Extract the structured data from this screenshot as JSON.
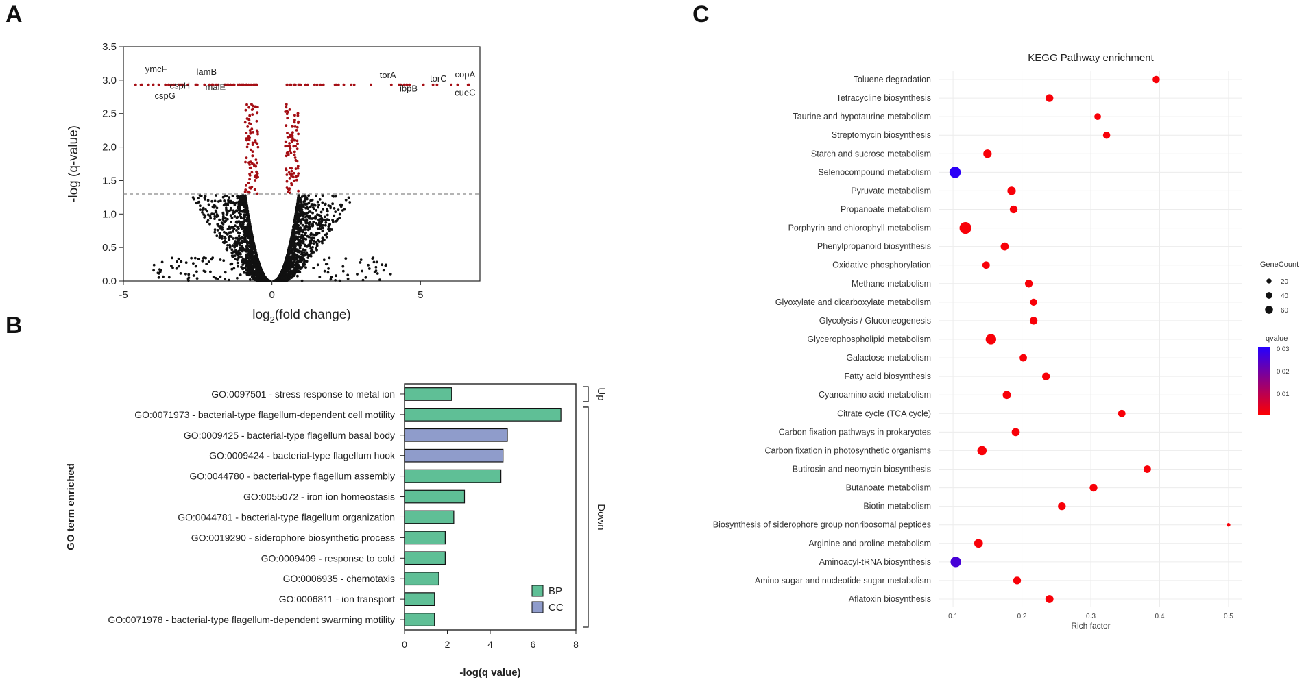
{
  "panels": {
    "a": "A",
    "b": "B",
    "c": "C"
  },
  "chart_data": [
    {
      "type": "scatter",
      "panel": "A",
      "title": "",
      "xlabel_main": "log",
      "xlabel_sub": "2",
      "xlabel_rest": "(fold change)",
      "ylabel": "-log (q-value)",
      "xlim": [
        -5,
        7
      ],
      "ylim": [
        0,
        3.5
      ],
      "xticks": [
        -5,
        0,
        5
      ],
      "yticks": [
        "0.0",
        "0.5",
        "1.0",
        "1.5",
        "2.0",
        "2.5",
        "3.0",
        "3.5"
      ],
      "threshold": 1.3,
      "colors": {
        "significant": "#a50f15",
        "nonsignificant": "#111111",
        "threshold": "#888888"
      },
      "labels": [
        {
          "text": "ymcF",
          "x": -3.9,
          "y": 3.12
        },
        {
          "text": "cspH",
          "x": -3.1,
          "y": 2.87
        },
        {
          "text": "cspG",
          "x": -3.6,
          "y": 2.72
        },
        {
          "text": "lamB",
          "x": -2.2,
          "y": 3.08
        },
        {
          "text": "malE",
          "x": -1.9,
          "y": 2.85
        },
        {
          "text": "torA",
          "x": 3.9,
          "y": 3.03
        },
        {
          "text": "ibpB",
          "x": 4.6,
          "y": 2.83
        },
        {
          "text": "torC",
          "x": 5.6,
          "y": 2.98
        },
        {
          "text": "copA",
          "x": 6.5,
          "y": 3.04
        },
        {
          "text": "cueC",
          "x": 6.5,
          "y": 2.77
        }
      ]
    },
    {
      "type": "bar",
      "orientation": "horizontal",
      "panel": "B",
      "ylabel": "GO term enriched",
      "xlabel": "-log(q value)",
      "xlim": [
        0,
        8
      ],
      "xticks": [
        "0",
        "2",
        "4",
        "6",
        "8"
      ],
      "categories": [
        "GO:0097501 - stress response to metal ion",
        "GO:0071973 - bacterial-type flagellum-dependent cell motility",
        "GO:0009425 - bacterial-type flagellum basal body",
        "GO:0009424 - bacterial-type flagellum hook",
        "GO:0044780 - bacterial-type flagellum assembly",
        "GO:0055072 - iron ion homeostasis",
        "GO:0044781 - bacterial-type flagellum organization",
        "GO:0019290 - siderophore biosynthetic process",
        "GO:0009409 - response to cold",
        "GO:0006935 - chemotaxis",
        "GO:0006811 - ion transport",
        "GO:0071978 - bacterial-type flagellum-dependent swarming motility"
      ],
      "values": [
        2.2,
        7.3,
        4.8,
        4.6,
        4.5,
        2.8,
        2.3,
        1.9,
        1.9,
        1.6,
        1.4,
        1.4
      ],
      "groups": [
        "BP",
        "BP",
        "CC",
        "CC",
        "BP",
        "BP",
        "BP",
        "BP",
        "BP",
        "BP",
        "BP",
        "BP"
      ],
      "legend": [
        {
          "name": "BP",
          "color": "#5fbf96"
        },
        {
          "name": "CC",
          "color": "#8f9ccb"
        }
      ],
      "brackets": [
        {
          "label": "Up",
          "from": 0,
          "to": 0
        },
        {
          "label": "Down",
          "from": 1,
          "to": 11
        }
      ]
    },
    {
      "type": "scatter",
      "panel": "C",
      "title": "KEGG Pathway enrichment",
      "xlabel": "Rich factor",
      "xlim": [
        0.08,
        0.52
      ],
      "xticks": [
        "0.1",
        "0.2",
        "0.3",
        "0.4",
        "0.5"
      ],
      "categories": [
        "Toluene degradation",
        "Tetracycline biosynthesis",
        "Taurine and hypotaurine metabolism",
        "Streptomycin biosynthesis",
        "Starch and sucrose metabolism",
        "Selenocompound metabolism",
        "Pyruvate metabolism",
        "Propanoate metabolism",
        "Porphyrin and chlorophyll metabolism",
        "Phenylpropanoid biosynthesis",
        "Oxidative phosphorylation",
        "Methane metabolism",
        "Glyoxylate and dicarboxylate metabolism",
        "Glycolysis / Gluconeogenesis",
        "Glycerophospholipid metabolism",
        "Galactose metabolism",
        "Fatty acid biosynthesis",
        "Cyanoamino acid metabolism",
        "Citrate cycle (TCA cycle)",
        "Carbon fixation pathways in prokaryotes",
        "Carbon fixation in photosynthetic organisms",
        "Butirosin and neomycin biosynthesis",
        "Butanoate metabolism",
        "Biotin metabolism",
        "Biosynthesis of siderophore group nonribosomal peptides",
        "Arginine and proline metabolism",
        "Aminoacyl-tRNA biosynthesis",
        "Amino sugar and nucleotide sugar metabolism",
        "Aflatoxin biosynthesis"
      ],
      "rich_factor": [
        0.395,
        0.24,
        0.31,
        0.323,
        0.15,
        0.103,
        0.185,
        0.188,
        0.118,
        0.175,
        0.148,
        0.21,
        0.217,
        0.217,
        0.155,
        0.202,
        0.235,
        0.178,
        0.345,
        0.191,
        0.142,
        0.382,
        0.304,
        0.258,
        0.5,
        0.137,
        0.104,
        0.193,
        0.24
      ],
      "gene_count": [
        15,
        18,
        12,
        15,
        22,
        45,
        22,
        18,
        50,
        20,
        16,
        18,
        14,
        18,
        38,
        16,
        18,
        20,
        16,
        20,
        28,
        16,
        18,
        18,
        2,
        24,
        38,
        18,
        20
      ],
      "qvalue": [
        0.001,
        0.001,
        0.001,
        0.001,
        0.001,
        0.031,
        0.001,
        0.001,
        0.001,
        0.001,
        0.001,
        0.001,
        0.001,
        0.001,
        0.001,
        0.001,
        0.001,
        0.001,
        0.001,
        0.001,
        0.001,
        0.001,
        0.001,
        0.001,
        0.001,
        0.001,
        0.027,
        0.001,
        0.001
      ],
      "size_legend": {
        "title": "GeneCount",
        "values": [
          20,
          40,
          60
        ]
      },
      "color_legend": {
        "title": "qvalue",
        "ticks": [
          "0.03",
          "0.02",
          "0.01"
        ],
        "low_color": "#ff0000",
        "high_color": "#2400ff"
      }
    }
  ]
}
